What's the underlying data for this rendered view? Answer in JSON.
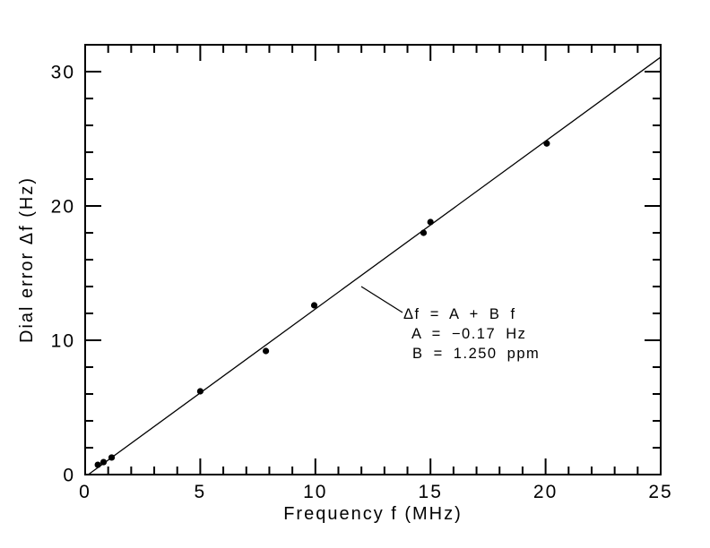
{
  "figure": {
    "background": "#ffffff",
    "ink_color": "#000000"
  },
  "chart_data": {
    "type": "scatter",
    "title": "",
    "xlabel": "Frequency f (MHz)",
    "ylabel": "Dial error Δf (Hz)",
    "xlim": [
      0,
      25
    ],
    "ylim": [
      0,
      32
    ],
    "x_major_ticks": [
      0,
      5,
      10,
      15,
      20,
      25
    ],
    "x_minor_step": 1,
    "y_major_ticks": [
      0,
      10,
      20,
      30
    ],
    "y_minor_step": 2,
    "grid": "off",
    "marker": "filled-circle",
    "points": [
      {
        "f_mhz": 0.55,
        "df_hz": 0.73
      },
      {
        "f_mhz": 0.8,
        "df_hz": 0.93
      },
      {
        "f_mhz": 1.15,
        "df_hz": 1.27
      },
      {
        "f_mhz": 5.0,
        "df_hz": 6.2
      },
      {
        "f_mhz": 7.85,
        "df_hz": 9.2
      },
      {
        "f_mhz": 9.95,
        "df_hz": 12.6
      },
      {
        "f_mhz": 14.7,
        "df_hz": 18.0
      },
      {
        "f_mhz": 15.0,
        "df_hz": 18.8
      },
      {
        "f_mhz": 20.05,
        "df_hz": 24.65
      }
    ],
    "fit_line": {
      "model": "Δf = A + B f",
      "A_hz": -0.17,
      "B_ppm": 1.25
    },
    "annotation": {
      "lines": [
        "Δf = A + B f",
        "A = −0.17 Hz",
        "B = 1.250 ppm"
      ]
    }
  }
}
